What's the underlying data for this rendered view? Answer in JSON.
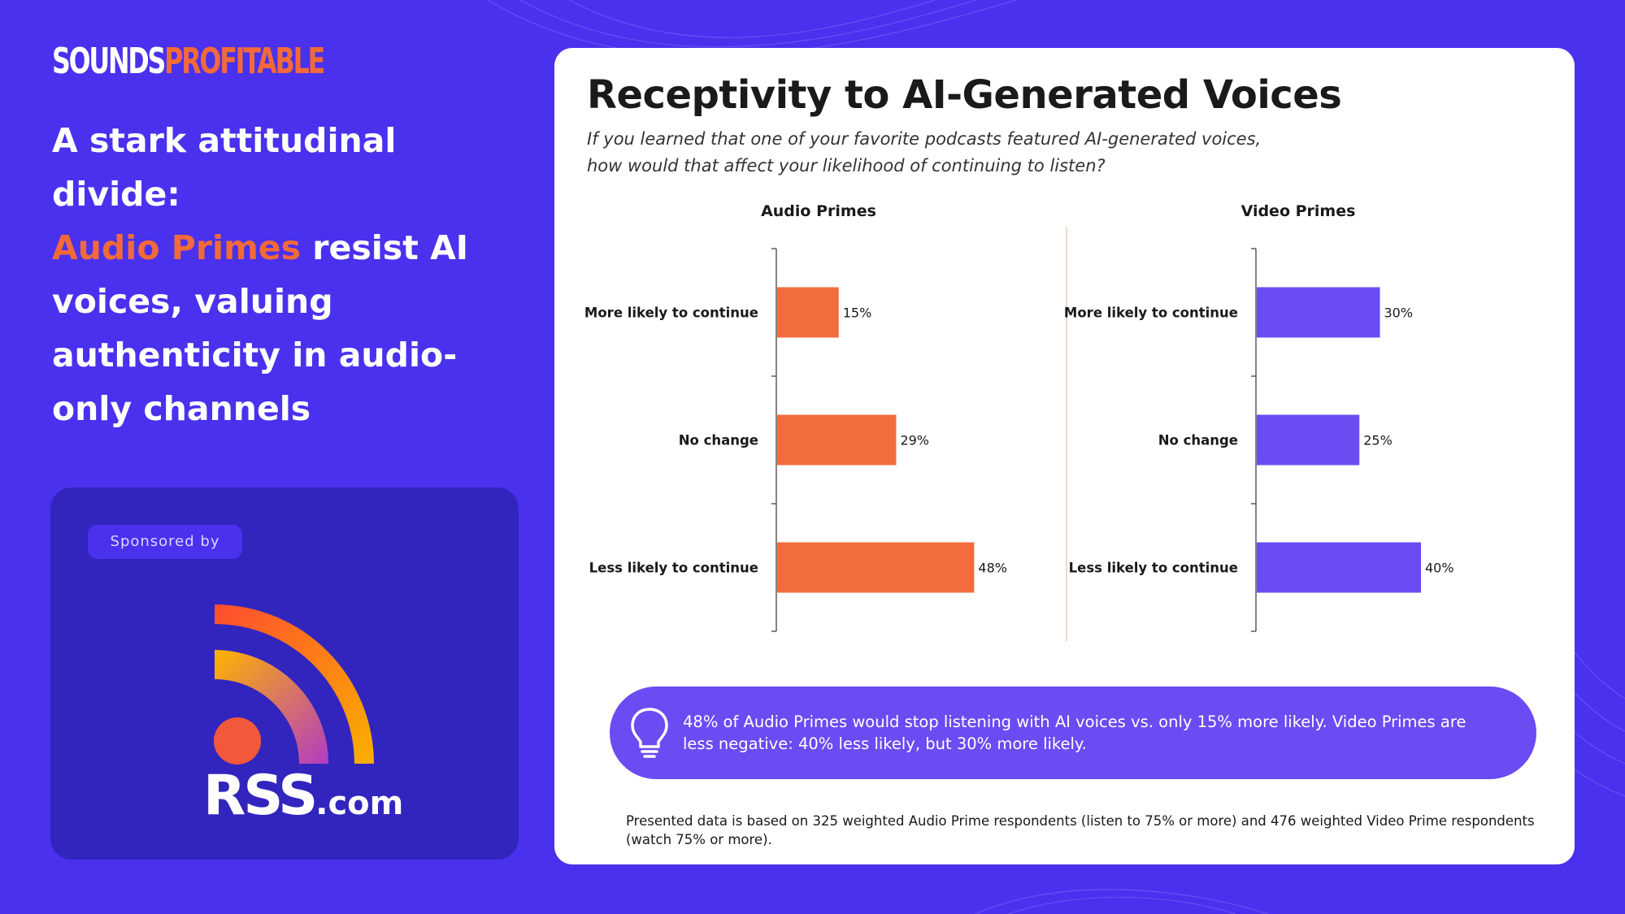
{
  "brand": {
    "logo_part1": "SOUNDS",
    "logo_part2": "PROFITABLE"
  },
  "headline": {
    "line_lead": "A stark attitudinal divide:",
    "accent": "Audio Primes",
    "rest": " resist AI voices, valuing authenticity in audio-only channels"
  },
  "sponsor": {
    "label": "Sponsored by",
    "logo_text": "RSS",
    "logo_suffix": ".com"
  },
  "chart_data": [
    {
      "type": "bar",
      "orientation": "horizontal",
      "title": "Audio Primes",
      "categories": [
        "More likely to continue",
        "No change",
        "Less likely to continue"
      ],
      "values": [
        15,
        29,
        48
      ],
      "value_labels": [
        "15%",
        "29%",
        "48%"
      ],
      "unit": "%",
      "color": "#f26d3d"
    },
    {
      "type": "bar",
      "orientation": "horizontal",
      "title": "Video Primes",
      "categories": [
        "More likely to continue",
        "No change",
        "Less likely to continue"
      ],
      "values": [
        30,
        25,
        40
      ],
      "value_labels": [
        "30%",
        "25%",
        "40%"
      ],
      "unit": "%",
      "color": "#6b4bf2"
    }
  ],
  "card": {
    "title": "Receptivity to AI-Generated Voices",
    "subtitle_line1": "If you learned that one of your favorite podcasts featured AI-generated voices,",
    "subtitle_line2": "how would that affect your likelihood of continuing to listen?",
    "insight": "48% of Audio Primes would stop listening with AI voices vs. only 15% more likely. Video Primes are less negative: 40% less likely, but 30% more likely.",
    "footnote": "Presented data is based on 325 weighted Audio Prime respondents (listen to 75% or more) and 476 weighted Video Prime respondents (watch 75% or more)."
  },
  "colors": {
    "background": "#4a31ee",
    "accent_orange": "#f26a3a",
    "sponsor_card": "#3225be",
    "insight_pill": "#6b4bf2"
  },
  "icons": {
    "insight": "lightbulb-icon",
    "sponsor": "rss-feed-icon"
  }
}
